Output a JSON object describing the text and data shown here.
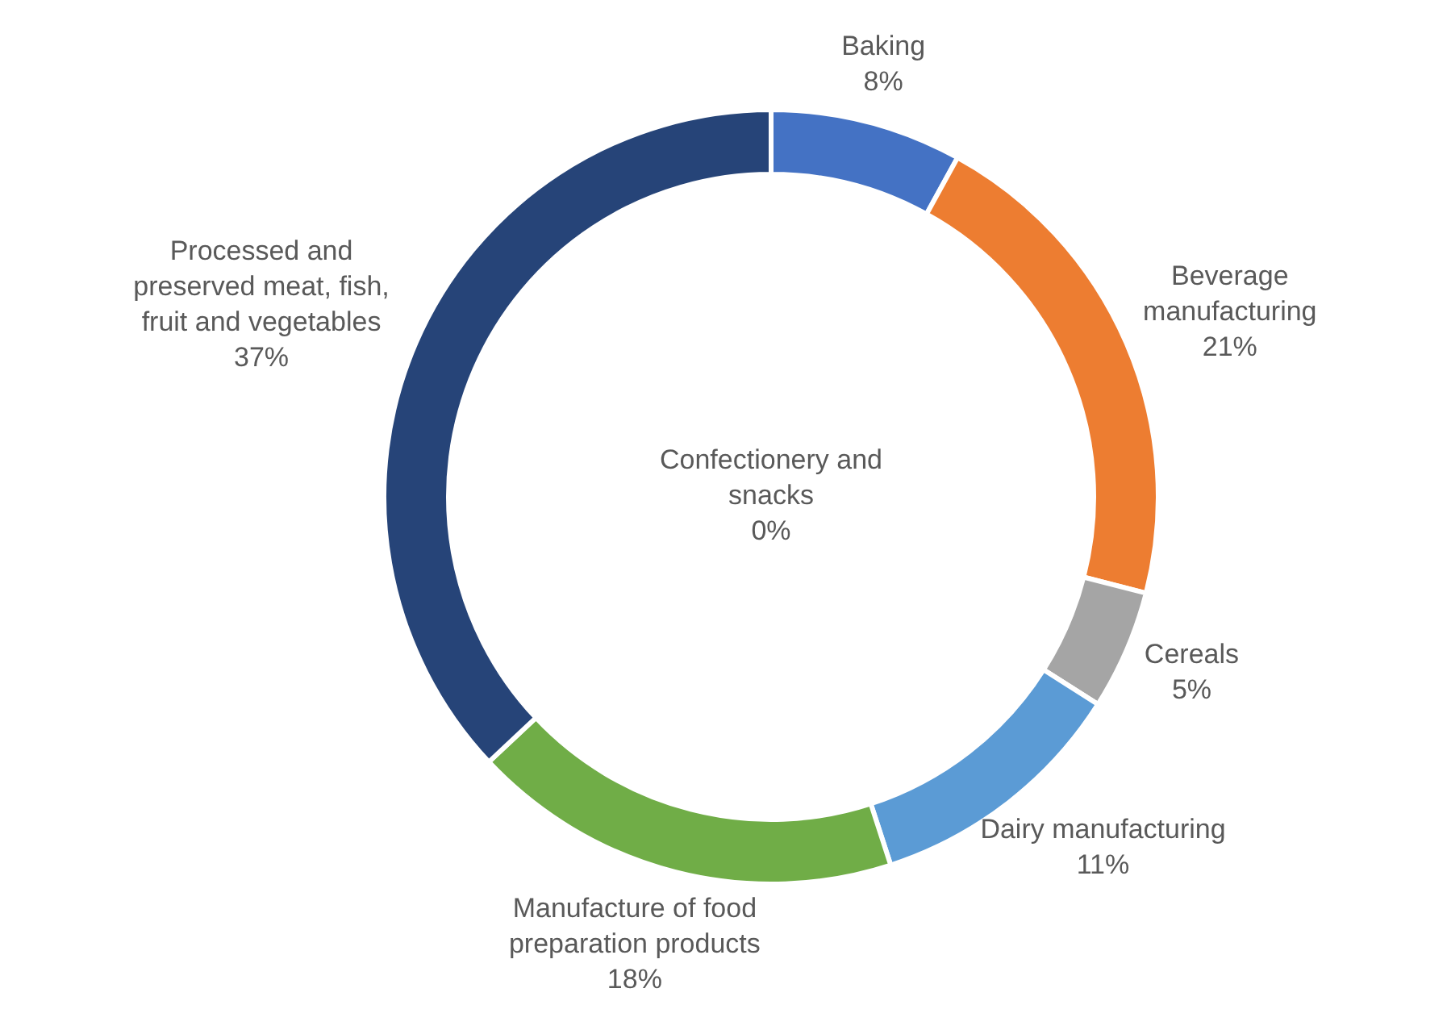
{
  "chart_data": {
    "type": "donut",
    "categories": [
      "Baking",
      "Beverage manufacturing",
      "Cereals",
      "Confectionery and snacks",
      "Dairy manufacturing",
      "Manufacture of food preparation products",
      "Processed and preserved meat, fish, fruit and vegetables"
    ],
    "values": [
      8,
      21,
      5,
      0,
      11,
      18,
      37
    ],
    "value_labels": [
      "8%",
      "21%",
      "5%",
      "0%",
      "11%",
      "18%",
      "37%"
    ],
    "colors": [
      "#4472c4",
      "#ed7d31",
      "#a5a5a5",
      "#ffc000",
      "#5b9bd5",
      "#70ad47",
      "#264478"
    ]
  }
}
